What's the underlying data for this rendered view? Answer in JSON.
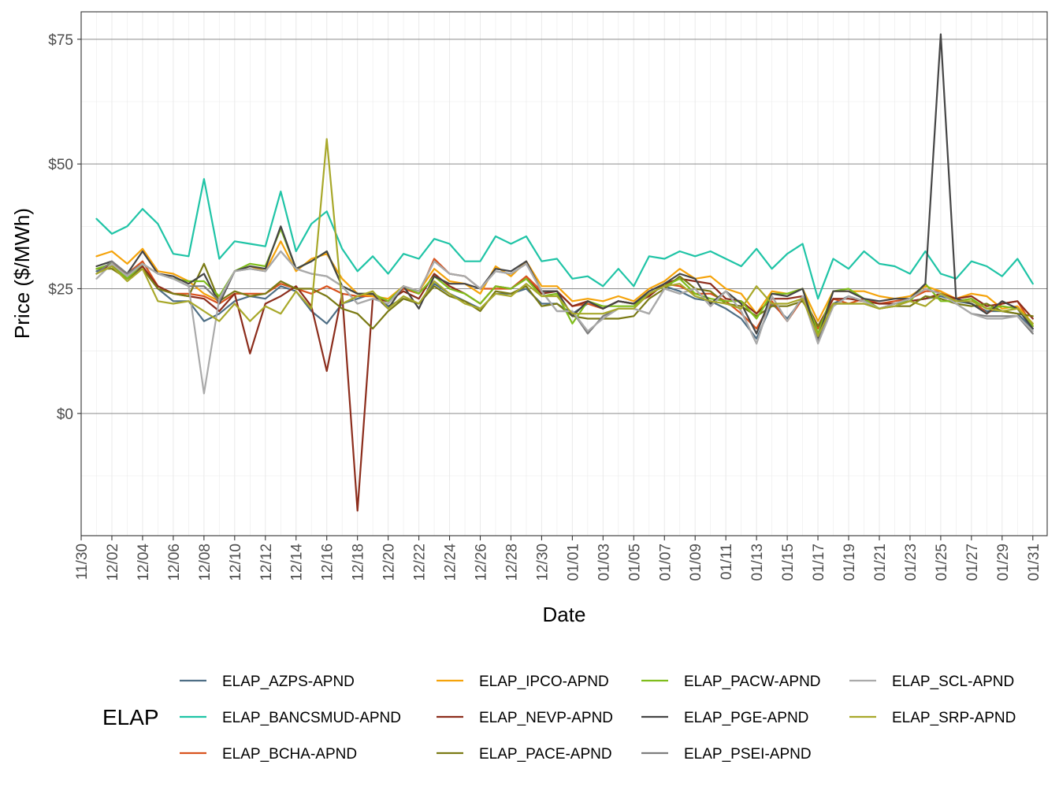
{
  "chart_data": {
    "type": "line",
    "xlabel": "Date",
    "ylabel": "Price ($/MWh)",
    "legend_title": "ELAP",
    "legend_position": "bottom",
    "grid": true,
    "ylim": [
      -24.5,
      80.5
    ],
    "y_ticks": [
      {
        "value": 0,
        "label": "$0"
      },
      {
        "value": 25,
        "label": "$25"
      },
      {
        "value": 50,
        "label": "$50"
      },
      {
        "value": 75,
        "label": "$75"
      }
    ],
    "x_tick_labels": [
      "11/30",
      "12/02",
      "12/04",
      "12/06",
      "12/08",
      "12/10",
      "12/12",
      "12/14",
      "12/16",
      "12/18",
      "12/20",
      "12/22",
      "12/24",
      "12/26",
      "12/28",
      "12/30",
      "01/01",
      "01/03",
      "01/05",
      "01/07",
      "01/09",
      "01/11",
      "01/13",
      "01/15",
      "01/17",
      "01/19",
      "01/21",
      "01/23",
      "01/25",
      "01/27",
      "01/29",
      "01/31"
    ],
    "x_dates": [
      "12/01",
      "12/02",
      "12/03",
      "12/04",
      "12/05",
      "12/06",
      "12/07",
      "12/08",
      "12/09",
      "12/10",
      "12/11",
      "12/12",
      "12/13",
      "12/14",
      "12/15",
      "12/16",
      "12/17",
      "12/18",
      "12/19",
      "12/20",
      "12/21",
      "12/22",
      "12/23",
      "12/24",
      "12/25",
      "12/26",
      "12/27",
      "12/28",
      "12/29",
      "12/30",
      "12/31",
      "01/01",
      "01/02",
      "01/03",
      "01/04",
      "01/05",
      "01/06",
      "01/07",
      "01/08",
      "01/09",
      "01/10",
      "01/11",
      "01/12",
      "01/13",
      "01/14",
      "01/15",
      "01/16",
      "01/17",
      "01/18",
      "01/19",
      "01/20",
      "01/21",
      "01/22",
      "01/23",
      "01/24",
      "01/25",
      "01/26",
      "01/27",
      "01/28",
      "01/29",
      "01/30",
      "01/31"
    ],
    "series": [
      {
        "name": "ELAP_AZPS-APND",
        "color": "#4e6e85",
        "values": [
          28.5,
          29.5,
          27.0,
          29.5,
          25.0,
          22.5,
          22.5,
          18.5,
          20.0,
          22.5,
          23.5,
          23.0,
          25.5,
          24.5,
          20.5,
          18.0,
          22.0,
          23.0,
          24.0,
          21.5,
          23.0,
          22.0,
          26.0,
          24.0,
          22.5,
          21.0,
          24.0,
          24.0,
          25.0,
          22.0,
          22.0,
          20.0,
          22.0,
          21.0,
          22.5,
          22.0,
          24.0,
          25.5,
          24.5,
          23.0,
          22.5,
          21.0,
          19.0,
          15.0,
          22.0,
          19.0,
          23.0,
          15.5,
          22.0,
          23.5,
          22.5,
          21.0,
          22.0,
          22.5,
          23.0,
          23.5,
          22.5,
          22.0,
          20.5,
          20.5,
          20.0,
          17.0
        ]
      },
      {
        "name": "ELAP_BANCSMUD-APND",
        "color": "#1fc4a6",
        "values": [
          39.0,
          36.0,
          37.5,
          41.0,
          38.0,
          32.0,
          31.5,
          47.0,
          31.0,
          34.5,
          34.0,
          33.5,
          44.5,
          32.5,
          38.0,
          40.5,
          33.0,
          28.5,
          31.5,
          28.0,
          32.0,
          31.0,
          35.0,
          34.0,
          30.5,
          30.5,
          35.5,
          34.0,
          35.5,
          30.5,
          31.0,
          27.0,
          27.5,
          25.5,
          29.0,
          25.5,
          31.5,
          31.0,
          32.5,
          31.5,
          32.5,
          31.0,
          29.5,
          33.0,
          29.0,
          32.0,
          34.0,
          23.0,
          31.0,
          29.0,
          32.5,
          30.0,
          29.5,
          28.0,
          32.5,
          28.0,
          27.0,
          30.5,
          29.5,
          27.5,
          31.0,
          26.0
        ]
      },
      {
        "name": "ELAP_BCHA-APND",
        "color": "#d9531e",
        "values": [
          28.0,
          30.0,
          28.0,
          30.5,
          25.5,
          24.0,
          24.0,
          23.5,
          22.0,
          24.0,
          24.0,
          24.0,
          26.0,
          25.0,
          24.0,
          25.5,
          24.0,
          23.5,
          23.5,
          22.5,
          25.0,
          24.0,
          31.0,
          28.0,
          27.5,
          25.0,
          25.0,
          25.0,
          27.5,
          24.5,
          24.5,
          21.5,
          22.0,
          21.0,
          22.5,
          22.0,
          23.5,
          26.0,
          25.5,
          24.0,
          24.0,
          22.5,
          20.0,
          17.0,
          22.5,
          18.5,
          23.0,
          17.0,
          23.0,
          22.0,
          23.0,
          22.0,
          22.5,
          23.0,
          24.5,
          24.5,
          22.5,
          23.0,
          20.0,
          22.0,
          22.5,
          17.5
        ]
      },
      {
        "name": "ELAP_IPCO-APND",
        "color": "#f5a30a",
        "values": [
          31.5,
          32.5,
          30.0,
          33.0,
          28.5,
          28.0,
          26.5,
          24.0,
          22.5,
          28.5,
          29.5,
          28.5,
          34.5,
          28.5,
          31.0,
          32.0,
          27.0,
          24.0,
          23.5,
          23.0,
          25.5,
          24.5,
          29.0,
          26.5,
          26.0,
          24.0,
          29.5,
          27.5,
          30.5,
          25.5,
          25.5,
          22.5,
          23.0,
          22.5,
          23.5,
          22.5,
          25.0,
          26.5,
          29.0,
          27.0,
          27.5,
          25.0,
          24.0,
          20.0,
          24.5,
          24.0,
          25.0,
          18.5,
          24.5,
          24.5,
          24.5,
          23.5,
          23.0,
          23.5,
          25.5,
          24.5,
          23.0,
          24.0,
          23.5,
          21.0,
          21.5,
          18.0
        ]
      },
      {
        "name": "ELAP_NEVP-APND",
        "color": "#8c2d1c",
        "values": [
          29.0,
          29.5,
          27.5,
          29.5,
          25.5,
          24.0,
          23.5,
          23.0,
          20.5,
          24.0,
          12.0,
          22.0,
          23.5,
          25.5,
          21.5,
          8.5,
          24.0,
          -19.5,
          23.0,
          22.5,
          24.5,
          23.0,
          28.0,
          25.5,
          24.0,
          22.0,
          25.5,
          25.0,
          27.0,
          24.0,
          24.5,
          21.5,
          22.5,
          21.0,
          22.5,
          22.0,
          23.5,
          26.0,
          27.0,
          26.5,
          26.0,
          23.0,
          22.5,
          20.0,
          23.0,
          23.0,
          23.5,
          17.5,
          23.0,
          23.0,
          22.5,
          22.0,
          22.0,
          22.5,
          23.0,
          24.0,
          23.0,
          23.5,
          21.5,
          22.0,
          22.5,
          19.0
        ]
      },
      {
        "name": "ELAP_PACE-APND",
        "color": "#7a7a14",
        "values": [
          29.0,
          29.0,
          27.0,
          29.0,
          25.0,
          24.0,
          23.5,
          30.0,
          22.5,
          24.5,
          23.5,
          24.0,
          26.5,
          25.0,
          25.0,
          23.5,
          21.0,
          20.0,
          17.0,
          20.5,
          23.0,
          22.0,
          25.5,
          23.5,
          22.5,
          20.5,
          24.5,
          24.0,
          25.5,
          21.5,
          22.0,
          19.5,
          19.0,
          19.0,
          19.0,
          19.5,
          23.0,
          25.0,
          27.5,
          25.0,
          24.5,
          22.0,
          21.5,
          19.5,
          21.5,
          21.5,
          22.5,
          17.5,
          22.0,
          22.0,
          22.0,
          21.0,
          21.5,
          21.5,
          23.5,
          23.0,
          22.0,
          21.5,
          22.0,
          20.5,
          20.0,
          19.5
        ]
      },
      {
        "name": "ELAP_PACW-APND",
        "color": "#7fbd1c",
        "values": [
          29.0,
          30.0,
          27.0,
          30.0,
          28.0,
          27.0,
          26.5,
          26.5,
          23.5,
          28.5,
          30.0,
          29.5,
          37.0,
          29.0,
          30.5,
          32.5,
          25.5,
          24.0,
          24.0,
          22.5,
          25.5,
          24.0,
          27.5,
          25.0,
          24.0,
          22.0,
          25.5,
          25.0,
          27.0,
          23.5,
          24.0,
          18.0,
          22.5,
          21.5,
          21.5,
          21.5,
          24.0,
          25.5,
          27.0,
          24.0,
          23.0,
          22.5,
          22.5,
          19.0,
          24.0,
          24.0,
          25.0,
          16.0,
          24.5,
          25.0,
          23.0,
          21.0,
          22.0,
          22.5,
          26.0,
          22.5,
          22.5,
          23.0,
          21.0,
          21.5,
          21.0,
          17.5
        ]
      },
      {
        "name": "ELAP_PGE-APND",
        "color": "#454545",
        "values": [
          29.5,
          30.5,
          28.0,
          32.5,
          28.0,
          27.5,
          26.0,
          28.0,
          22.0,
          28.5,
          29.5,
          29.0,
          37.5,
          29.0,
          30.5,
          32.5,
          25.5,
          24.0,
          24.0,
          21.0,
          25.5,
          21.0,
          27.5,
          26.0,
          26.0,
          25.0,
          29.0,
          28.5,
          30.5,
          24.5,
          24.5,
          19.5,
          22.5,
          21.0,
          22.5,
          22.0,
          24.5,
          26.0,
          28.0,
          27.0,
          22.0,
          24.5,
          22.0,
          16.0,
          24.0,
          23.5,
          25.0,
          15.0,
          24.5,
          24.5,
          23.0,
          22.5,
          23.0,
          23.0,
          26.0,
          76.0,
          23.0,
          22.0,
          20.0,
          22.5,
          21.0,
          17.0
        ]
      },
      {
        "name": "ELAP_PSEI-APND",
        "color": "#7d7d7d",
        "values": [
          28.0,
          30.5,
          28.0,
          30.0,
          28.0,
          27.0,
          25.5,
          25.5,
          22.5,
          28.5,
          29.0,
          28.5,
          32.5,
          29.0,
          28.0,
          27.5,
          25.5,
          22.0,
          23.0,
          22.0,
          25.5,
          24.5,
          30.5,
          28.0,
          27.5,
          25.0,
          28.5,
          28.0,
          30.0,
          24.5,
          20.5,
          20.5,
          16.0,
          19.5,
          21.0,
          21.0,
          20.0,
          25.0,
          24.0,
          25.0,
          21.5,
          24.5,
          20.5,
          14.0,
          23.5,
          18.5,
          23.5,
          14.5,
          21.5,
          23.5,
          22.5,
          21.0,
          22.0,
          23.0,
          25.0,
          24.0,
          22.0,
          20.0,
          19.5,
          19.5,
          19.5,
          16.0
        ]
      },
      {
        "name": "ELAP_SCL-APND",
        "color": "#aaaaaa",
        "values": [
          27.0,
          30.0,
          27.5,
          30.0,
          28.0,
          27.0,
          25.5,
          4.0,
          23.0,
          28.5,
          29.0,
          28.5,
          32.5,
          29.0,
          28.0,
          27.5,
          25.5,
          22.0,
          23.0,
          22.0,
          25.5,
          24.5,
          30.5,
          28.0,
          27.5,
          25.0,
          28.5,
          28.0,
          30.0,
          24.5,
          20.5,
          20.5,
          16.5,
          19.0,
          21.0,
          21.0,
          20.0,
          25.0,
          24.0,
          25.0,
          21.5,
          24.5,
          20.5,
          14.0,
          23.5,
          18.5,
          23.5,
          14.0,
          21.5,
          23.5,
          22.5,
          21.0,
          22.0,
          23.0,
          25.0,
          24.0,
          22.0,
          20.0,
          19.0,
          19.0,
          19.5,
          16.5
        ]
      },
      {
        "name": "ELAP_SRP-APND",
        "color": "#a8a82a",
        "values": [
          28.0,
          29.5,
          26.5,
          29.0,
          22.5,
          22.0,
          22.5,
          20.5,
          18.5,
          22.0,
          18.5,
          21.5,
          20.0,
          24.5,
          21.0,
          55.0,
          22.0,
          23.5,
          24.5,
          21.0,
          23.5,
          22.0,
          26.5,
          24.0,
          22.0,
          21.0,
          24.0,
          23.5,
          26.0,
          23.5,
          23.5,
          20.0,
          20.0,
          20.0,
          21.0,
          21.0,
          24.0,
          25.5,
          26.0,
          23.5,
          22.5,
          22.0,
          21.0,
          25.5,
          22.0,
          22.0,
          23.0,
          15.5,
          22.0,
          22.0,
          22.0,
          21.0,
          21.5,
          22.5,
          21.5,
          24.0,
          22.5,
          22.5,
          21.0,
          20.5,
          21.0,
          18.0
        ]
      }
    ]
  }
}
